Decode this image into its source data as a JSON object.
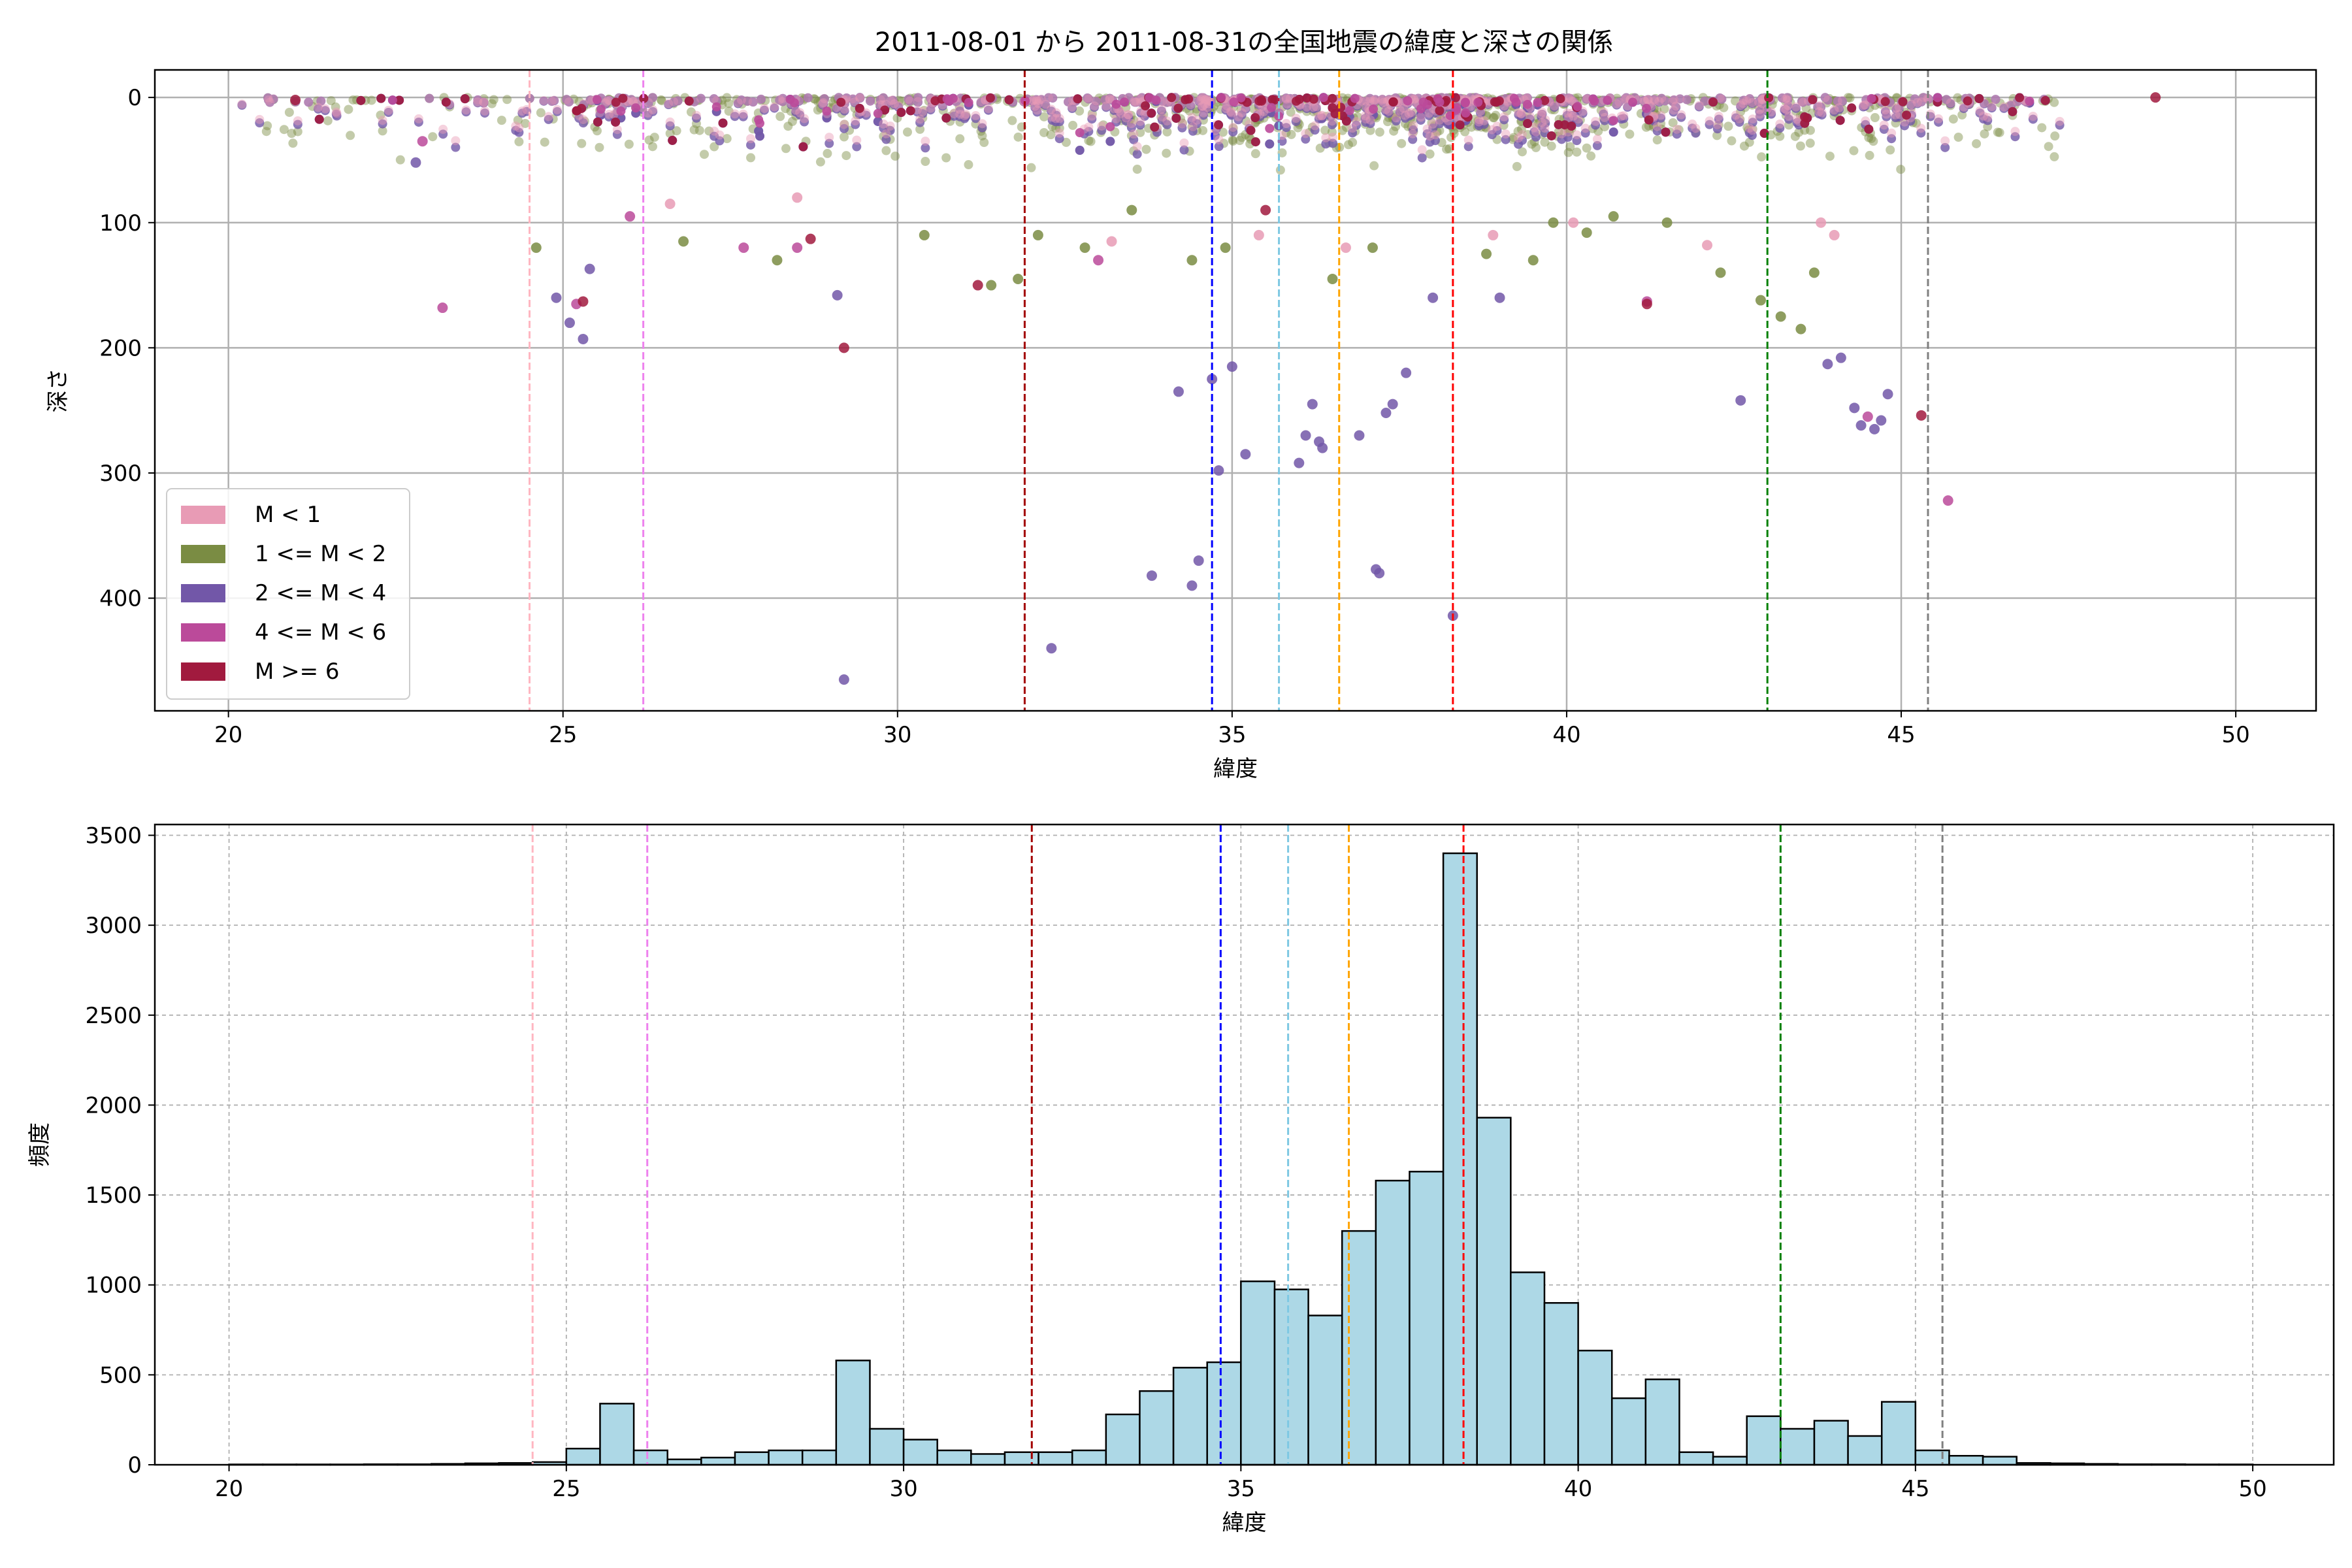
{
  "title": "2011-08-01 から 2011-08-31の全国地震の緯度と深さの関係",
  "colors": {
    "mag_lt1": "#e89bb5",
    "mag_1_2": "#7a8c43",
    "mag_2_4": "#7257a8",
    "mag_4_6": "#bb4a9a",
    "mag_ge6": "#a11a3e",
    "hist_fill": "#add8e6",
    "hist_edge": "#000000"
  },
  "chart_data": [
    {
      "type": "scatter",
      "xlabel": "緯度",
      "ylabel": "深さ",
      "xlim": [
        18.9,
        51.2
      ],
      "ylim": [
        490,
        -22
      ],
      "y_inverted": true,
      "xticks": [
        20,
        25,
        30,
        35,
        40,
        45,
        50
      ],
      "yticks": [
        0,
        100,
        200,
        300,
        400
      ],
      "grid": true,
      "legend": {
        "placement": "lower-left",
        "entries": [
          {
            "label": "M < 1",
            "color_key": "mag_lt1"
          },
          {
            "label": "1 <= M < 2",
            "color_key": "mag_1_2"
          },
          {
            "label": "2 <= M < 4",
            "color_key": "mag_2_4"
          },
          {
            "label": "4 <= M < 6",
            "color_key": "mag_4_6"
          },
          {
            "label": "M >= 6",
            "color_key": "mag_ge6"
          }
        ]
      },
      "vlines": [
        {
          "x": 24.5,
          "color": "#ffb6c1"
        },
        {
          "x": 26.2,
          "color": "#ee82ee"
        },
        {
          "x": 31.9,
          "color": "#a30000"
        },
        {
          "x": 34.7,
          "color": "#0000ff"
        },
        {
          "x": 35.7,
          "color": "#7ec8e3"
        },
        {
          "x": 36.6,
          "color": "#ffa500"
        },
        {
          "x": 38.3,
          "color": "#ff0000"
        },
        {
          "x": 43.0,
          "color": "#008000"
        },
        {
          "x": 45.4,
          "color": "#808080"
        }
      ],
      "series": [
        {
          "color_key": "mag_2_4",
          "points": [
            [
              34.7,
              225
            ],
            [
              35.0,
              215
            ],
            [
              34.8,
              298
            ],
            [
              35.2,
              285
            ],
            [
              34.2,
              235
            ],
            [
              34.5,
              370
            ],
            [
              34.4,
              390
            ],
            [
              33.8,
              382
            ],
            [
              32.3,
              440
            ],
            [
              29.2,
              465
            ],
            [
              36.1,
              270
            ],
            [
              36.2,
              245
            ],
            [
              36.3,
              275
            ],
            [
              36.35,
              280
            ],
            [
              36.0,
              292
            ],
            [
              37.2,
              380
            ],
            [
              37.15,
              377
            ],
            [
              36.9,
              270
            ],
            [
              37.4,
              245
            ],
            [
              37.3,
              252
            ],
            [
              37.6,
              220
            ],
            [
              38.3,
              414
            ],
            [
              43.9,
              213
            ],
            [
              44.1,
              208
            ],
            [
              44.8,
              237
            ],
            [
              44.4,
              262
            ],
            [
              44.6,
              265
            ],
            [
              44.7,
              258
            ],
            [
              44.3,
              248
            ],
            [
              42.6,
              242
            ],
            [
              25.3,
              193
            ],
            [
              25.1,
              180
            ],
            [
              25.4,
              137
            ],
            [
              24.9,
              160
            ],
            [
              22.8,
              52
            ],
            [
              29.1,
              158
            ],
            [
              38.0,
              160
            ],
            [
              39.0,
              160
            ]
          ]
        },
        {
          "color_key": "mag_4_6",
          "points": [
            [
              23.2,
              168
            ],
            [
              45.7,
              322
            ],
            [
              44.5,
              255
            ],
            [
              25.2,
              165
            ],
            [
              27.7,
              120
            ],
            [
              26.0,
              95
            ],
            [
              33.0,
              130
            ],
            [
              28.5,
              120
            ],
            [
              22.9,
              35
            ],
            [
              41.2,
              163
            ]
          ]
        },
        {
          "color_key": "mag_ge6",
          "points": [
            [
              29.2,
              200
            ],
            [
              45.3,
              254
            ],
            [
              28.7,
              113
            ],
            [
              25.3,
              163
            ],
            [
              41.2,
              165
            ],
            [
              48.8,
              0
            ],
            [
              21.0,
              2
            ],
            [
              31.2,
              150
            ],
            [
              35.5,
              90
            ]
          ]
        },
        {
          "color_key": "mag_1_2",
          "points": [
            [
              43.5,
              185
            ],
            [
              43.2,
              175
            ],
            [
              34.9,
              120
            ],
            [
              34.4,
              130
            ],
            [
              32.1,
              110
            ],
            [
              32.8,
              120
            ],
            [
              31.8,
              145
            ],
            [
              31.4,
              150
            ],
            [
              38.8,
              125
            ],
            [
              39.5,
              130
            ],
            [
              40.3,
              108
            ],
            [
              41.5,
              100
            ],
            [
              42.3,
              140
            ],
            [
              42.9,
              162
            ],
            [
              43.7,
              140
            ],
            [
              36.5,
              145
            ],
            [
              37.1,
              120
            ],
            [
              28.2,
              130
            ],
            [
              30.4,
              110
            ],
            [
              26.8,
              115
            ],
            [
              39.8,
              100
            ],
            [
              40.7,
              95
            ],
            [
              33.5,
              90
            ],
            [
              24.6,
              120
            ]
          ]
        },
        {
          "color_key": "mag_lt1",
          "points": [
            [
              35.4,
              110
            ],
            [
              36.7,
              120
            ],
            [
              33.2,
              115
            ],
            [
              42.1,
              118
            ],
            [
              40.1,
              100
            ],
            [
              28.5,
              80
            ],
            [
              26.6,
              85
            ],
            [
              38.9,
              110
            ],
            [
              43.8,
              100
            ],
            [
              44.0,
              110
            ]
          ]
        }
      ]
    },
    {
      "type": "bar",
      "xlabel": "緯度",
      "ylabel": "頻度",
      "xlim": [
        18.9,
        51.2
      ],
      "ylim": [
        0,
        3560
      ],
      "xticks": [
        20,
        25,
        30,
        35,
        40,
        45,
        50
      ],
      "yticks": [
        0,
        500,
        1000,
        1500,
        2000,
        2500,
        3000,
        3500
      ],
      "grid": true,
      "bin_edges_start": 20.0,
      "bin_width": 0.5,
      "values": [
        2,
        2,
        2,
        2,
        3,
        3,
        5,
        8,
        10,
        15,
        90,
        340,
        80,
        30,
        40,
        70,
        80,
        80,
        580,
        200,
        140,
        80,
        60,
        70,
        70,
        80,
        280,
        410,
        540,
        570,
        1020,
        975,
        830,
        1300,
        1580,
        1630,
        3400,
        1930,
        1070,
        900,
        635,
        370,
        475,
        70,
        45,
        270,
        200,
        245,
        160,
        350,
        80,
        50,
        45,
        10,
        8,
        5,
        3,
        3,
        2,
        2
      ]
    }
  ]
}
